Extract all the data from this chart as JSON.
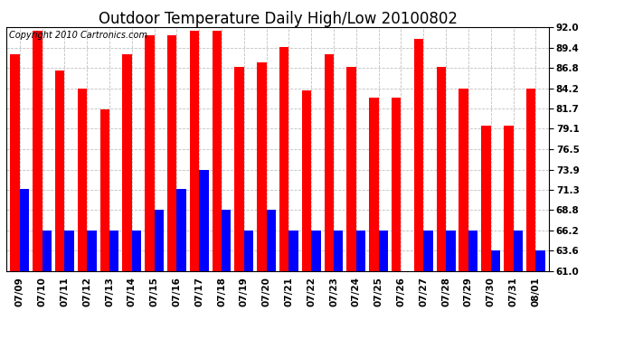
{
  "title": "Outdoor Temperature Daily High/Low 20100802",
  "copyright": "Copyright 2010 Cartronics.com",
  "dates": [
    "07/09",
    "07/10",
    "07/11",
    "07/12",
    "07/13",
    "07/14",
    "07/15",
    "07/16",
    "07/17",
    "07/18",
    "07/19",
    "07/20",
    "07/21",
    "07/22",
    "07/23",
    "07/24",
    "07/25",
    "07/26",
    "07/27",
    "07/28",
    "07/29",
    "07/30",
    "07/31",
    "08/01"
  ],
  "highs": [
    88.5,
    91.5,
    86.5,
    84.2,
    81.5,
    88.5,
    91.0,
    91.0,
    91.5,
    91.5,
    87.0,
    87.5,
    89.5,
    84.0,
    88.5,
    87.0,
    83.0,
    83.0,
    90.5,
    87.0,
    84.2,
    79.5,
    79.5,
    84.2
  ],
  "lows": [
    71.5,
    66.2,
    66.2,
    66.2,
    66.2,
    66.2,
    68.8,
    71.5,
    73.9,
    68.8,
    66.2,
    68.8,
    66.2,
    66.2,
    66.2,
    66.2,
    66.2,
    61.0,
    66.2,
    66.2,
    66.2,
    63.6,
    66.2,
    63.6
  ],
  "high_color": "#ff0000",
  "low_color": "#0000ff",
  "bg_color": "#ffffff",
  "grid_color": "#b0b0b0",
  "ymin": 61.0,
  "ymax": 92.0,
  "yticks": [
    61.0,
    63.6,
    66.2,
    68.8,
    71.3,
    73.9,
    76.5,
    79.1,
    81.7,
    84.2,
    86.8,
    89.4,
    92.0
  ],
  "title_fontsize": 12,
  "copyright_fontsize": 7,
  "tick_fontsize": 7.5,
  "bar_width": 0.42,
  "figwidth": 6.9,
  "figheight": 3.75,
  "dpi": 100
}
